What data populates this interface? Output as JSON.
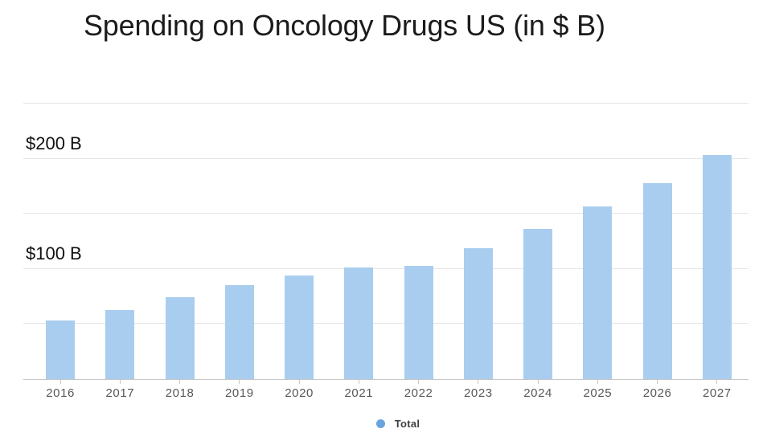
{
  "chart_data": {
    "type": "bar",
    "title": "Spending on Oncology Drugs US (in $ B)",
    "categories": [
      "2016",
      "2017",
      "2018",
      "2019",
      "2020",
      "2021",
      "2022",
      "2023",
      "2024",
      "2025",
      "2026",
      "2027"
    ],
    "series": [
      {
        "name": "Total",
        "values": [
          53,
          63,
          74,
          85,
          94,
          101,
          103,
          119,
          136,
          157,
          178,
          203
        ]
      }
    ],
    "xlabel": "",
    "ylabel": "",
    "ylim": [
      0,
      250
    ],
    "ytick_interval": 50,
    "yaxis_labels": [
      {
        "value": 100,
        "text": "$100 B"
      },
      {
        "value": 200,
        "text": "$200 B"
      }
    ],
    "grid": true,
    "legend_position": "bottom-center",
    "colors": {
      "bar": "#a9cdee",
      "legend_marker": "#68a4dd",
      "gridline": "#e5e5e5",
      "axis_line": "#c7c7c7",
      "title_text": "#1b1b1b",
      "year_label": "#58585a",
      "value_label": "#111111",
      "legend_label": "#3f3f3f"
    }
  }
}
